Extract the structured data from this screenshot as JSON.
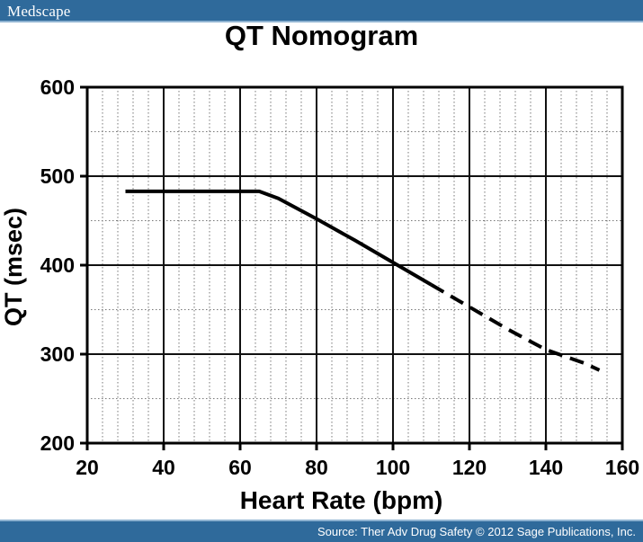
{
  "header": {
    "brand": "Medscape"
  },
  "footer": {
    "source": "Source: Ther Adv Drug Safety © 2012 Sage Publications, Inc."
  },
  "chart_data": {
    "type": "line",
    "title": "QT Nomogram",
    "xlabel": "Heart Rate (bpm)",
    "ylabel": "QT (msec)",
    "xlim": [
      20,
      160
    ],
    "ylim": [
      200,
      600
    ],
    "xticks": [
      20,
      40,
      60,
      80,
      100,
      120,
      140,
      160
    ],
    "yticks": [
      200,
      300,
      400,
      500,
      600
    ],
    "grid": true,
    "series": [
      {
        "style": "solid",
        "x": [
          30,
          65,
          70,
          80,
          90,
          100,
          110
        ],
        "y": [
          483,
          483,
          475,
          452,
          428,
          403,
          378
        ]
      },
      {
        "style": "dashed",
        "x": [
          110,
          120,
          130,
          140,
          150,
          154
        ],
        "y": [
          378,
          353,
          328,
          305,
          290,
          282
        ]
      }
    ]
  }
}
